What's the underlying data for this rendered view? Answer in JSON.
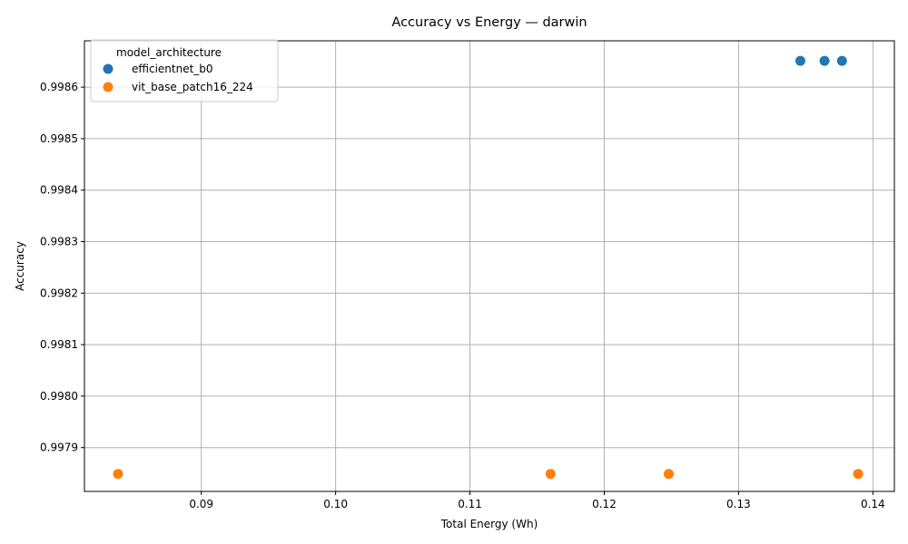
{
  "chart_data": {
    "type": "scatter",
    "title": "Accuracy vs Energy — darwin",
    "xlabel": "Total Energy (Wh)",
    "ylabel": "Accuracy",
    "xlim": [
      0.0813,
      0.1416
    ],
    "ylim": [
      0.997815,
      0.99869
    ],
    "x_ticks": [
      0.09,
      0.1,
      0.11,
      0.12,
      0.13,
      0.14
    ],
    "x_tick_labels": [
      "0.09",
      "0.10",
      "0.11",
      "0.12",
      "0.13",
      "0.14"
    ],
    "y_ticks": [
      0.9979,
      0.998,
      0.9981,
      0.9982,
      0.9983,
      0.9984,
      0.9985,
      0.9986
    ],
    "y_tick_labels": [
      "0.9979",
      "0.9980",
      "0.9981",
      "0.9982",
      "0.9983",
      "0.9984",
      "0.9985",
      "0.9986"
    ],
    "grid": true,
    "legend": {
      "title": "model_architecture",
      "placement": "top-left"
    },
    "series": [
      {
        "name": "efficientnet_b0",
        "color": "#1f77b4",
        "points": [
          {
            "x": 0.1346,
            "y": 0.998651
          },
          {
            "x": 0.1364,
            "y": 0.998651
          },
          {
            "x": 0.1377,
            "y": 0.998651
          }
        ]
      },
      {
        "name": "vit_base_patch16_224",
        "color": "#ff7f0e",
        "points": [
          {
            "x": 0.0838,
            "y": 0.997849
          },
          {
            "x": 0.116,
            "y": 0.997849
          },
          {
            "x": 0.1248,
            "y": 0.997849
          },
          {
            "x": 0.1389,
            "y": 0.997849
          }
        ]
      }
    ]
  }
}
